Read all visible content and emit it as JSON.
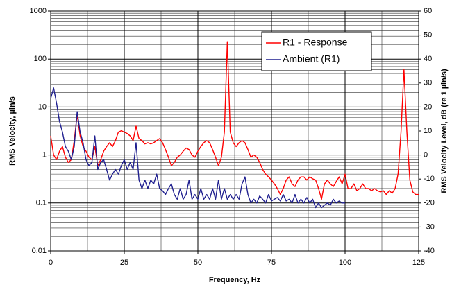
{
  "chart_data": {
    "type": "line",
    "x_label": "Frequency, Hz",
    "y_label": "RMS Velocity, µin/s",
    "y2_label": "RMS Velocity Level, dB (re 1 µin/s)",
    "xlim": [
      0,
      125
    ],
    "xticks": [
      0,
      25,
      50,
      75,
      100,
      125
    ],
    "ylim": [
      0.01,
      1000
    ],
    "yticks": [
      0.01,
      0.1,
      1,
      10,
      100,
      1000
    ],
    "ylog": true,
    "y2lim": [
      -40,
      60
    ],
    "y2ticks": [
      -40,
      -30,
      -20,
      -10,
      0,
      10,
      20,
      30,
      40,
      50,
      60
    ],
    "grid": true,
    "legend": "upper right",
    "series": [
      {
        "name": "R1 - Response",
        "color": "#ff0000",
        "x": [
          0,
          1,
          2,
          3,
          4,
          5,
          6,
          7,
          8,
          9,
          10,
          11,
          12,
          13,
          14,
          15,
          16,
          17,
          18,
          19,
          20,
          21,
          22,
          23,
          24,
          25,
          26,
          27,
          28,
          29,
          30,
          31,
          32,
          33,
          34,
          35,
          36,
          37,
          38,
          39,
          40,
          41,
          42,
          43,
          44,
          45,
          46,
          47,
          48,
          49,
          50,
          51,
          52,
          53,
          54,
          55,
          56,
          57,
          58,
          59,
          60,
          61,
          62,
          63,
          64,
          65,
          66,
          67,
          68,
          69,
          70,
          71,
          72,
          73,
          74,
          75,
          76,
          77,
          78,
          79,
          80,
          81,
          82,
          83,
          84,
          85,
          86,
          87,
          88,
          89,
          90,
          91,
          92,
          93,
          94,
          95,
          96,
          97,
          98,
          99,
          100,
          101,
          102,
          103,
          104,
          105,
          106,
          107,
          108,
          109,
          110,
          111,
          112,
          113,
          114,
          115,
          116,
          117,
          118,
          119,
          120,
          121,
          122,
          123,
          124,
          125
        ],
        "values": [
          2.5,
          1.0,
          0.8,
          1.2,
          1.5,
          0.9,
          0.7,
          0.8,
          2.0,
          7.0,
          2.5,
          1.5,
          1.2,
          0.9,
          0.8,
          1.5,
          0.6,
          0.8,
          1.2,
          1.5,
          1.8,
          1.5,
          2.0,
          3.0,
          3.2,
          3.0,
          2.8,
          2.5,
          2.0,
          4.0,
          2.2,
          2.0,
          1.7,
          1.8,
          1.7,
          1.8,
          2.0,
          2.2,
          1.8,
          1.3,
          0.9,
          0.6,
          0.7,
          0.9,
          1.0,
          1.2,
          1.4,
          1.3,
          1.0,
          0.9,
          1.2,
          1.5,
          1.8,
          2.0,
          1.8,
          1.3,
          0.9,
          0.6,
          0.9,
          3,
          230,
          3,
          1.8,
          1.5,
          1.8,
          2.0,
          1.8,
          1.3,
          0.9,
          1.0,
          0.9,
          0.7,
          0.5,
          0.4,
          0.35,
          0.3,
          0.25,
          0.2,
          0.15,
          0.2,
          0.3,
          0.35,
          0.25,
          0.22,
          0.3,
          0.35,
          0.35,
          0.3,
          0.35,
          0.32,
          0.3,
          0.2,
          0.12,
          0.25,
          0.3,
          0.25,
          0.22,
          0.28,
          0.35,
          0.25,
          0.4,
          0.2,
          0.2,
          0.25,
          0.18,
          0.2,
          0.25,
          0.2,
          0.2,
          0.18,
          0.2,
          0.18,
          0.17,
          0.18,
          0.15,
          0.18,
          0.16,
          0.2,
          0.4,
          3,
          60,
          3,
          0.3,
          0.17,
          0.15,
          0.15
        ]
      },
      {
        "name": "Ambient (R1)",
        "color": "#1f1f8f",
        "x": [
          0,
          1,
          2,
          3,
          4,
          5,
          6,
          7,
          8,
          9,
          10,
          11,
          12,
          13,
          14,
          15,
          16,
          17,
          18,
          19,
          20,
          21,
          22,
          23,
          24,
          25,
          26,
          27,
          28,
          29,
          30,
          31,
          32,
          33,
          34,
          35,
          36,
          37,
          38,
          39,
          40,
          41,
          42,
          43,
          44,
          45,
          46,
          47,
          48,
          49,
          50,
          51,
          52,
          53,
          54,
          55,
          56,
          57,
          58,
          59,
          60,
          61,
          62,
          63,
          64,
          65,
          66,
          67,
          68,
          69,
          70,
          71,
          72,
          73,
          74,
          75,
          76,
          77,
          78,
          79,
          80,
          81,
          82,
          83,
          84,
          85,
          86,
          87,
          88,
          89,
          90,
          91,
          92,
          93,
          94,
          95,
          96,
          97,
          98,
          99,
          100
        ],
        "values": [
          15,
          25,
          12,
          5,
          3,
          1.5,
          1.2,
          0.8,
          1.5,
          8,
          3,
          1.8,
          0.8,
          0.6,
          0.7,
          2.5,
          0.5,
          0.7,
          0.8,
          0.5,
          0.3,
          0.4,
          0.5,
          0.4,
          0.6,
          0.8,
          0.5,
          0.7,
          0.5,
          1.8,
          0.3,
          0.2,
          0.3,
          0.2,
          0.3,
          0.25,
          0.4,
          0.2,
          0.18,
          0.15,
          0.2,
          0.25,
          0.15,
          0.12,
          0.2,
          0.12,
          0.15,
          0.3,
          0.12,
          0.15,
          0.12,
          0.2,
          0.12,
          0.15,
          0.12,
          0.2,
          0.12,
          0.3,
          0.12,
          0.2,
          0.12,
          0.15,
          0.12,
          0.15,
          0.12,
          0.25,
          0.35,
          0.15,
          0.1,
          0.12,
          0.1,
          0.14,
          0.12,
          0.1,
          0.15,
          0.11,
          0.12,
          0.13,
          0.11,
          0.15,
          0.11,
          0.12,
          0.1,
          0.15,
          0.1,
          0.12,
          0.1,
          0.13,
          0.1,
          0.12,
          0.08,
          0.1,
          0.08,
          0.09,
          0.1,
          0.09,
          0.12,
          0.1,
          0.11,
          0.1,
          0.1
        ]
      }
    ]
  }
}
